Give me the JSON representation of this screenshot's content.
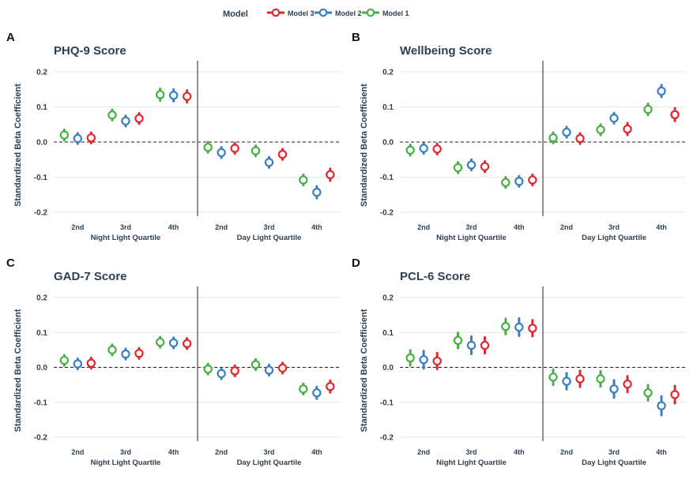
{
  "chart_data": {
    "type": "scatter",
    "legend": {
      "title": "Model",
      "position": "top-center",
      "entries": [
        {
          "name": "Model 3",
          "color": "#e0282e"
        },
        {
          "name": "Model 2",
          "color": "#3a7fc1"
        },
        {
          "name": "Model 1",
          "color": "#4aae47"
        }
      ]
    },
    "series_order": [
      "Model 1",
      "Model 2",
      "Model 3"
    ],
    "ylabel": "Standardized Beta Coefficient",
    "yticks": [
      "0.2",
      "0.1",
      "0.0",
      "-0.1",
      "-0.2"
    ],
    "ylim": [
      -0.2,
      0.2
    ],
    "panels": [
      {
        "letter": "A",
        "title": "PHQ-9 Score",
        "groups": [
          {
            "label": "Night Light Quartile",
            "categories": [
              "2nd",
              "3rd",
              "4th"
            ],
            "series": [
              {
                "name": "Model 1",
                "values": [
                  0.02,
                  0.077,
                  0.135
                ],
                "ci": [
                  [
                    0.005,
                    0.035
                  ],
                  [
                    0.062,
                    0.092
                  ],
                  [
                    0.118,
                    0.152
                  ]
                ]
              },
              {
                "name": "Model 2",
                "values": [
                  0.01,
                  0.06,
                  0.133
                ],
                "ci": [
                  [
                    -0.005,
                    0.025
                  ],
                  [
                    0.045,
                    0.075
                  ],
                  [
                    0.116,
                    0.15
                  ]
                ]
              },
              {
                "name": "Model 3",
                "values": [
                  0.012,
                  0.067,
                  0.13
                ],
                "ci": [
                  [
                    -0.003,
                    0.027
                  ],
                  [
                    0.052,
                    0.082
                  ],
                  [
                    0.113,
                    0.147
                  ]
                ]
              }
            ]
          },
          {
            "label": "Day Light Quartile",
            "categories": [
              "2nd",
              "3rd",
              "4th"
            ],
            "series": [
              {
                "name": "Model 1",
                "values": [
                  -0.015,
                  -0.025,
                  -0.108
                ],
                "ci": [
                  [
                    -0.03,
                    0.0
                  ],
                  [
                    -0.04,
                    -0.01
                  ],
                  [
                    -0.123,
                    -0.093
                  ]
                ]
              },
              {
                "name": "Model 2",
                "values": [
                  -0.03,
                  -0.058,
                  -0.143
                ],
                "ci": [
                  [
                    -0.045,
                    -0.015
                  ],
                  [
                    -0.073,
                    -0.043
                  ],
                  [
                    -0.16,
                    -0.126
                  ]
                ]
              },
              {
                "name": "Model 3",
                "values": [
                  -0.018,
                  -0.035,
                  -0.093
                ],
                "ci": [
                  [
                    -0.033,
                    -0.003
                  ],
                  [
                    -0.05,
                    -0.02
                  ],
                  [
                    -0.11,
                    -0.076
                  ]
                ]
              }
            ]
          }
        ]
      },
      {
        "letter": "B",
        "title": "Wellbeing Score",
        "groups": [
          {
            "label": "Night Light Quartile",
            "categories": [
              "2nd",
              "3rd",
              "4th"
            ],
            "series": [
              {
                "name": "Model 1",
                "values": [
                  -0.023,
                  -0.073,
                  -0.115
                ],
                "ci": [
                  [
                    -0.038,
                    -0.008
                  ],
                  [
                    -0.088,
                    -0.058
                  ],
                  [
                    -0.13,
                    -0.1
                  ]
                ]
              },
              {
                "name": "Model 2",
                "values": [
                  -0.018,
                  -0.065,
                  -0.112
                ],
                "ci": [
                  [
                    -0.033,
                    -0.003
                  ],
                  [
                    -0.08,
                    -0.05
                  ],
                  [
                    -0.127,
                    -0.097
                  ]
                ]
              },
              {
                "name": "Model 3",
                "values": [
                  -0.02,
                  -0.07,
                  -0.108
                ],
                "ci": [
                  [
                    -0.035,
                    -0.005
                  ],
                  [
                    -0.085,
                    -0.055
                  ],
                  [
                    -0.123,
                    -0.093
                  ]
                ]
              }
            ]
          },
          {
            "label": "Day Light Quartile",
            "categories": [
              "2nd",
              "3rd",
              "4th"
            ],
            "series": [
              {
                "name": "Model 1",
                "values": [
                  0.012,
                  0.035,
                  0.093
                ],
                "ci": [
                  [
                    -0.003,
                    0.027
                  ],
                  [
                    0.02,
                    0.05
                  ],
                  [
                    0.077,
                    0.109
                  ]
                ]
              },
              {
                "name": "Model 2",
                "values": [
                  0.028,
                  0.068,
                  0.145
                ],
                "ci": [
                  [
                    0.013,
                    0.043
                  ],
                  [
                    0.053,
                    0.083
                  ],
                  [
                    0.128,
                    0.162
                  ]
                ]
              },
              {
                "name": "Model 3",
                "values": [
                  0.01,
                  0.037,
                  0.078
                ],
                "ci": [
                  [
                    -0.005,
                    0.025
                  ],
                  [
                    0.02,
                    0.054
                  ],
                  [
                    0.06,
                    0.096
                  ]
                ]
              }
            ]
          }
        ]
      },
      {
        "letter": "C",
        "title": "GAD-7 Score",
        "groups": [
          {
            "label": "Night Light Quartile",
            "categories": [
              "2nd",
              "3rd",
              "4th"
            ],
            "series": [
              {
                "name": "Model 1",
                "values": [
                  0.02,
                  0.05,
                  0.072
                ],
                "ci": [
                  [
                    0.005,
                    0.035
                  ],
                  [
                    0.035,
                    0.065
                  ],
                  [
                    0.057,
                    0.087
                  ]
                ]
              },
              {
                "name": "Model 2",
                "values": [
                  0.01,
                  0.038,
                  0.07
                ],
                "ci": [
                  [
                    -0.005,
                    0.025
                  ],
                  [
                    0.023,
                    0.053
                  ],
                  [
                    0.055,
                    0.085
                  ]
                ]
              },
              {
                "name": "Model 3",
                "values": [
                  0.012,
                  0.04,
                  0.068
                ],
                "ci": [
                  [
                    -0.003,
                    0.027
                  ],
                  [
                    0.025,
                    0.055
                  ],
                  [
                    0.053,
                    0.083
                  ]
                ]
              }
            ]
          },
          {
            "label": "Day Light Quartile",
            "categories": [
              "2nd",
              "3rd",
              "4th"
            ],
            "series": [
              {
                "name": "Model 1",
                "values": [
                  -0.005,
                  0.008,
                  -0.062
                ],
                "ci": [
                  [
                    -0.02,
                    0.01
                  ],
                  [
                    -0.007,
                    0.023
                  ],
                  [
                    -0.077,
                    -0.047
                  ]
                ]
              },
              {
                "name": "Model 2",
                "values": [
                  -0.018,
                  -0.008,
                  -0.073
                ],
                "ci": [
                  [
                    -0.033,
                    -0.003
                  ],
                  [
                    -0.023,
                    0.007
                  ],
                  [
                    -0.09,
                    -0.056
                  ]
                ]
              },
              {
                "name": "Model 3",
                "values": [
                  -0.01,
                  -0.002,
                  -0.055
                ],
                "ci": [
                  [
                    -0.025,
                    0.005
                  ],
                  [
                    -0.017,
                    0.013
                  ],
                  [
                    -0.072,
                    -0.038
                  ]
                ]
              }
            ]
          }
        ]
      },
      {
        "letter": "D",
        "title": "PCL-6 Score",
        "groups": [
          {
            "label": "Night Light Quartile",
            "categories": [
              "2nd",
              "3rd",
              "4th"
            ],
            "series": [
              {
                "name": "Model 1",
                "values": [
                  0.027,
                  0.077,
                  0.117
                ],
                "ci": [
                  [
                    0.005,
                    0.049
                  ],
                  [
                    0.055,
                    0.099
                  ],
                  [
                    0.095,
                    0.139
                  ]
                ]
              },
              {
                "name": "Model 2",
                "values": [
                  0.022,
                  0.063,
                  0.115
                ],
                "ci": [
                  [
                    -0.003,
                    0.047
                  ],
                  [
                    0.038,
                    0.088
                  ],
                  [
                    0.09,
                    0.14
                  ]
                ]
              },
              {
                "name": "Model 3",
                "values": [
                  0.018,
                  0.063,
                  0.112
                ],
                "ci": [
                  [
                    -0.005,
                    0.041
                  ],
                  [
                    0.04,
                    0.086
                  ],
                  [
                    0.089,
                    0.135
                  ]
                ]
              }
            ]
          },
          {
            "label": "Day Light Quartile",
            "categories": [
              "2nd",
              "3rd",
              "4th"
            ],
            "series": [
              {
                "name": "Model 1",
                "values": [
                  -0.028,
                  -0.033,
                  -0.073
                ],
                "ci": [
                  [
                    -0.05,
                    -0.006
                  ],
                  [
                    -0.055,
                    -0.011
                  ],
                  [
                    -0.095,
                    -0.051
                  ]
                ]
              },
              {
                "name": "Model 2",
                "values": [
                  -0.04,
                  -0.062,
                  -0.11
                ],
                "ci": [
                  [
                    -0.063,
                    -0.017
                  ],
                  [
                    -0.087,
                    -0.037
                  ],
                  [
                    -0.137,
                    -0.083
                  ]
                ]
              },
              {
                "name": "Model 3",
                "values": [
                  -0.033,
                  -0.048,
                  -0.078
                ],
                "ci": [
                  [
                    -0.056,
                    -0.01
                  ],
                  [
                    -0.071,
                    -0.025
                  ],
                  [
                    -0.103,
                    -0.053
                  ]
                ]
              }
            ]
          }
        ]
      }
    ]
  }
}
